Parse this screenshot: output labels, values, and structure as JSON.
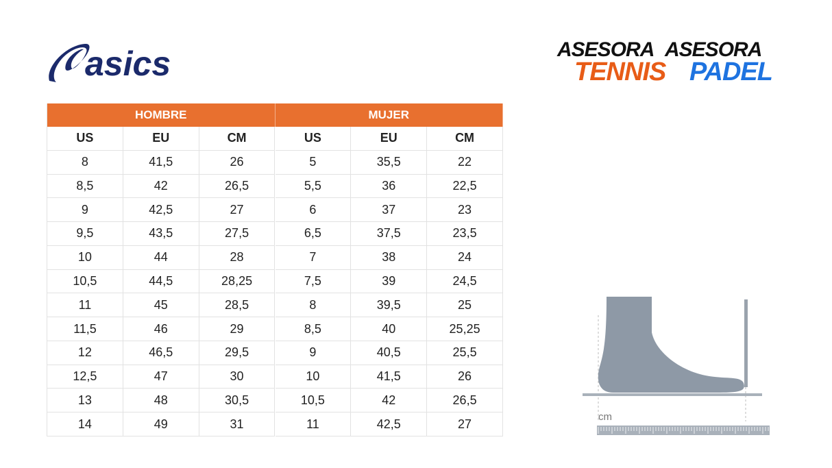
{
  "logos": {
    "brand": "asics",
    "partners": [
      {
        "top": "ASESORA",
        "bottom": "TENNIS"
      },
      {
        "top": "ASESORA",
        "bottom": "PADEL"
      }
    ]
  },
  "table": {
    "groups": [
      "HOMBRE",
      "MUJER"
    ],
    "columns": [
      "US",
      "EU",
      "CM",
      "US",
      "EU",
      "CM"
    ],
    "rows": [
      [
        "8",
        "41,5",
        "26",
        "5",
        "35,5",
        "22"
      ],
      [
        "8,5",
        "42",
        "26,5",
        "5,5",
        "36",
        "22,5"
      ],
      [
        "9",
        "42,5",
        "27",
        "6",
        "37",
        "23"
      ],
      [
        "9,5",
        "43,5",
        "27,5",
        "6,5",
        "37,5",
        "23,5"
      ],
      [
        "10",
        "44",
        "28",
        "7",
        "38",
        "24"
      ],
      [
        "10,5",
        "44,5",
        "28,25",
        "7,5",
        "39",
        "24,5"
      ],
      [
        "11",
        "45",
        "28,5",
        "8",
        "39,5",
        "25"
      ],
      [
        "11,5",
        "46",
        "29",
        "8,5",
        "40",
        "25,25"
      ],
      [
        "12",
        "46,5",
        "29,5",
        "9",
        "40,5",
        "25,5"
      ],
      [
        "12,5",
        "47",
        "30",
        "10",
        "41,5",
        "26"
      ],
      [
        "13",
        "48",
        "30,5",
        "10,5",
        "42",
        "26,5"
      ],
      [
        "14",
        "49",
        "31",
        "11",
        "42,5",
        "27"
      ]
    ]
  },
  "illustration": {
    "unit": "cm"
  }
}
